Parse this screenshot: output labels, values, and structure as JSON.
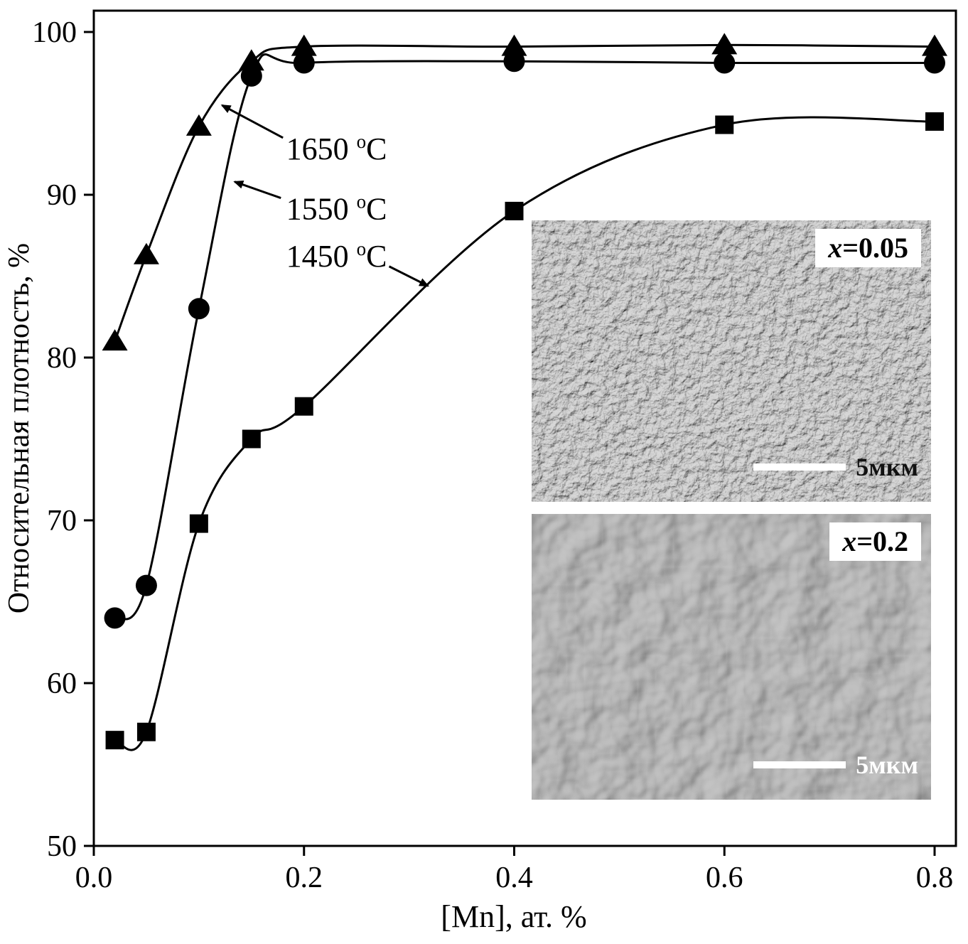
{
  "figure": {
    "background": "#ffffff",
    "series_color": "#000000"
  },
  "insets": [
    {
      "label_var": "x",
      "label_val": "=0.05",
      "scale_label": "5мкм",
      "texture": "fine-porous-microstructure"
    },
    {
      "label_var": "x",
      "label_val": "=0.2",
      "scale_label": "5мкм",
      "texture": "coarse-grain-microstructure"
    }
  ],
  "chart_data": {
    "type": "line",
    "title": "",
    "xlabel": "[Mn], ат. %",
    "ylabel": "Относительная плотность, %",
    "xlim": [
      0,
      0.82
    ],
    "ylim": [
      50,
      100
    ],
    "x_tick_labels": [
      "0.0",
      "0.2",
      "0.4",
      "0.6",
      "0.8"
    ],
    "x_tick_values": [
      0,
      0.2,
      0.4,
      0.6,
      0.8
    ],
    "y_tick_values": [
      50,
      60,
      70,
      80,
      90,
      100
    ],
    "grid": false,
    "legend": "arrow-annotations",
    "series": [
      {
        "name": "1450 °C",
        "marker": "square",
        "x": [
          0.02,
          0.05,
          0.1,
          0.15,
          0.2,
          0.4,
          0.6,
          0.8
        ],
        "y": [
          56.5,
          57.0,
          69.8,
          75.0,
          77.0,
          89.0,
          94.3,
          94.5
        ]
      },
      {
        "name": "1550 °C",
        "marker": "circle",
        "x": [
          0.02,
          0.05,
          0.1,
          0.15,
          0.2,
          0.4,
          0.6,
          0.8
        ],
        "y": [
          64.0,
          66.0,
          83.0,
          97.3,
          98.1,
          98.2,
          98.1,
          98.1
        ]
      },
      {
        "name": "1650 °C",
        "marker": "triangle",
        "x": [
          0.02,
          0.05,
          0.1,
          0.15,
          0.2,
          0.4,
          0.6,
          0.8
        ],
        "y": [
          81.0,
          86.3,
          94.2,
          98.2,
          99.1,
          99.1,
          99.2,
          99.1
        ]
      }
    ],
    "annotations": [
      {
        "label": "1650 °C",
        "text_at": [
          0.183,
          92.8
        ],
        "arrow_from": [
          0.18,
          93.5
        ],
        "arrow_to": [
          0.122,
          95.5
        ]
      },
      {
        "label": "1550 °C",
        "text_at": [
          0.183,
          89.1
        ],
        "arrow_from": [
          0.178,
          89.8
        ],
        "arrow_to": [
          0.134,
          90.8
        ]
      },
      {
        "label": "1450 °C",
        "text_at": [
          0.183,
          86.2
        ],
        "arrow_from": [
          0.281,
          85.6
        ],
        "arrow_to": [
          0.318,
          84.4
        ]
      }
    ]
  }
}
